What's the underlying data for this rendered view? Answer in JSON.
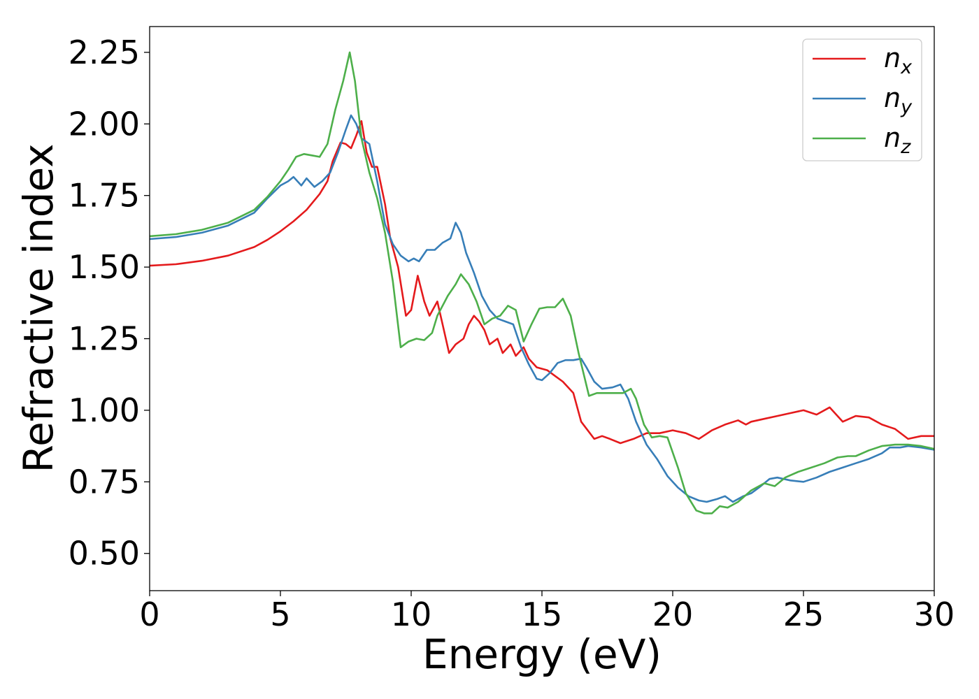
{
  "chart_data": {
    "type": "line",
    "title": "",
    "xlabel": "Energy (eV)",
    "ylabel": "Refractive index",
    "xlim": [
      0,
      30
    ],
    "ylim": [
      0.37,
      2.34
    ],
    "xticks": [
      0,
      5,
      10,
      15,
      20,
      25,
      30
    ],
    "xtick_labels": [
      "0",
      "5",
      "10",
      "15",
      "20",
      "25",
      "30"
    ],
    "yticks": [
      0.5,
      0.75,
      1.0,
      1.25,
      1.5,
      1.75,
      2.0,
      2.25
    ],
    "ytick_labels": [
      "0.50",
      "0.75",
      "1.00",
      "1.25",
      "1.50",
      "1.75",
      "2.00",
      "2.25"
    ],
    "grid": false,
    "legend_position": "top-right",
    "series": [
      {
        "name": "n",
        "subscript": "x",
        "color": "#e41a1c",
        "points": [
          [
            0,
            1.505
          ],
          [
            1,
            1.51
          ],
          [
            2,
            1.522
          ],
          [
            3,
            1.54
          ],
          [
            4,
            1.57
          ],
          [
            4.5,
            1.595
          ],
          [
            5,
            1.625
          ],
          [
            5.5,
            1.66
          ],
          [
            6,
            1.7
          ],
          [
            6.5,
            1.755
          ],
          [
            6.8,
            1.8
          ],
          [
            7.0,
            1.87
          ],
          [
            7.3,
            1.935
          ],
          [
            7.5,
            1.93
          ],
          [
            7.7,
            1.915
          ],
          [
            7.9,
            1.96
          ],
          [
            8.1,
            2.01
          ],
          [
            8.3,
            1.9
          ],
          [
            8.5,
            1.85
          ],
          [
            8.7,
            1.85
          ],
          [
            9.0,
            1.72
          ],
          [
            9.2,
            1.6
          ],
          [
            9.5,
            1.5
          ],
          [
            9.8,
            1.33
          ],
          [
            10.0,
            1.35
          ],
          [
            10.25,
            1.47
          ],
          [
            10.5,
            1.38
          ],
          [
            10.7,
            1.33
          ],
          [
            11.0,
            1.38
          ],
          [
            11.2,
            1.3
          ],
          [
            11.45,
            1.2
          ],
          [
            11.7,
            1.23
          ],
          [
            12.0,
            1.25
          ],
          [
            12.2,
            1.3
          ],
          [
            12.4,
            1.33
          ],
          [
            12.6,
            1.31
          ],
          [
            12.8,
            1.28
          ],
          [
            13.0,
            1.23
          ],
          [
            13.3,
            1.25
          ],
          [
            13.5,
            1.2
          ],
          [
            13.8,
            1.23
          ],
          [
            14.0,
            1.19
          ],
          [
            14.3,
            1.22
          ],
          [
            14.5,
            1.18
          ],
          [
            14.8,
            1.15
          ],
          [
            15.2,
            1.14
          ],
          [
            15.5,
            1.12
          ],
          [
            15.8,
            1.1
          ],
          [
            16.2,
            1.06
          ],
          [
            16.5,
            0.96
          ],
          [
            17.0,
            0.9
          ],
          [
            17.3,
            0.91
          ],
          [
            17.6,
            0.9
          ],
          [
            18.0,
            0.885
          ],
          [
            18.5,
            0.9
          ],
          [
            19.0,
            0.92
          ],
          [
            19.5,
            0.92
          ],
          [
            20.0,
            0.93
          ],
          [
            20.5,
            0.92
          ],
          [
            21.0,
            0.9
          ],
          [
            21.5,
            0.93
          ],
          [
            22.0,
            0.95
          ],
          [
            22.5,
            0.965
          ],
          [
            22.8,
            0.95
          ],
          [
            23.0,
            0.96
          ],
          [
            23.5,
            0.97
          ],
          [
            24.0,
            0.98
          ],
          [
            24.5,
            0.99
          ],
          [
            25.0,
            1.0
          ],
          [
            25.5,
            0.985
          ],
          [
            26.0,
            1.01
          ],
          [
            26.5,
            0.96
          ],
          [
            27.0,
            0.98
          ],
          [
            27.5,
            0.975
          ],
          [
            28.0,
            0.95
          ],
          [
            28.5,
            0.935
          ],
          [
            29.0,
            0.9
          ],
          [
            29.5,
            0.91
          ],
          [
            30.0,
            0.91
          ]
        ]
      },
      {
        "name": "n",
        "subscript": "y",
        "color": "#377eb8",
        "points": [
          [
            0,
            1.598
          ],
          [
            1,
            1.605
          ],
          [
            2,
            1.62
          ],
          [
            3,
            1.645
          ],
          [
            4,
            1.69
          ],
          [
            4.5,
            1.74
          ],
          [
            5,
            1.785
          ],
          [
            5.3,
            1.8
          ],
          [
            5.5,
            1.815
          ],
          [
            5.8,
            1.785
          ],
          [
            6.0,
            1.81
          ],
          [
            6.3,
            1.78
          ],
          [
            6.6,
            1.8
          ],
          [
            6.9,
            1.83
          ],
          [
            7.2,
            1.9
          ],
          [
            7.5,
            1.98
          ],
          [
            7.7,
            2.03
          ],
          [
            7.9,
            2.0
          ],
          [
            8.1,
            1.95
          ],
          [
            8.4,
            1.93
          ],
          [
            8.7,
            1.8
          ],
          [
            9.0,
            1.65
          ],
          [
            9.3,
            1.58
          ],
          [
            9.6,
            1.54
          ],
          [
            9.9,
            1.52
          ],
          [
            10.1,
            1.53
          ],
          [
            10.3,
            1.52
          ],
          [
            10.6,
            1.56
          ],
          [
            10.9,
            1.56
          ],
          [
            11.2,
            1.585
          ],
          [
            11.5,
            1.6
          ],
          [
            11.7,
            1.655
          ],
          [
            11.9,
            1.62
          ],
          [
            12.1,
            1.55
          ],
          [
            12.4,
            1.48
          ],
          [
            12.7,
            1.4
          ],
          [
            13.0,
            1.35
          ],
          [
            13.3,
            1.32
          ],
          [
            13.6,
            1.31
          ],
          [
            13.9,
            1.3
          ],
          [
            14.2,
            1.22
          ],
          [
            14.5,
            1.16
          ],
          [
            14.8,
            1.11
          ],
          [
            15.0,
            1.105
          ],
          [
            15.3,
            1.13
          ],
          [
            15.6,
            1.165
          ],
          [
            15.9,
            1.175
          ],
          [
            16.2,
            1.175
          ],
          [
            16.5,
            1.18
          ],
          [
            16.7,
            1.15
          ],
          [
            17.0,
            1.1
          ],
          [
            17.3,
            1.075
          ],
          [
            17.7,
            1.08
          ],
          [
            18.0,
            1.09
          ],
          [
            18.3,
            1.04
          ],
          [
            18.6,
            0.96
          ],
          [
            19.0,
            0.88
          ],
          [
            19.4,
            0.83
          ],
          [
            19.8,
            0.77
          ],
          [
            20.2,
            0.73
          ],
          [
            20.6,
            0.7
          ],
          [
            21.0,
            0.685
          ],
          [
            21.3,
            0.68
          ],
          [
            21.7,
            0.69
          ],
          [
            22.0,
            0.7
          ],
          [
            22.3,
            0.68
          ],
          [
            22.7,
            0.7
          ],
          [
            23.0,
            0.71
          ],
          [
            23.3,
            0.73
          ],
          [
            23.7,
            0.76
          ],
          [
            24.0,
            0.765
          ],
          [
            24.5,
            0.755
          ],
          [
            25.0,
            0.75
          ],
          [
            25.5,
            0.765
          ],
          [
            26.0,
            0.785
          ],
          [
            26.5,
            0.8
          ],
          [
            27.0,
            0.815
          ],
          [
            27.5,
            0.83
          ],
          [
            28.0,
            0.85
          ],
          [
            28.3,
            0.87
          ],
          [
            28.7,
            0.87
          ],
          [
            29.0,
            0.875
          ],
          [
            29.5,
            0.87
          ],
          [
            30.0,
            0.862
          ]
        ]
      },
      {
        "name": "n",
        "subscript": "z",
        "color": "#4daf4a",
        "points": [
          [
            0,
            1.608
          ],
          [
            1,
            1.615
          ],
          [
            2,
            1.63
          ],
          [
            3,
            1.655
          ],
          [
            4,
            1.7
          ],
          [
            4.5,
            1.745
          ],
          [
            5,
            1.8
          ],
          [
            5.3,
            1.84
          ],
          [
            5.6,
            1.885
          ],
          [
            5.9,
            1.895
          ],
          [
            6.2,
            1.89
          ],
          [
            6.5,
            1.885
          ],
          [
            6.8,
            1.93
          ],
          [
            7.1,
            2.05
          ],
          [
            7.4,
            2.15
          ],
          [
            7.65,
            2.25
          ],
          [
            7.85,
            2.15
          ],
          [
            8.1,
            1.95
          ],
          [
            8.4,
            1.83
          ],
          [
            8.7,
            1.74
          ],
          [
            9.0,
            1.62
          ],
          [
            9.3,
            1.45
          ],
          [
            9.6,
            1.22
          ],
          [
            9.9,
            1.24
          ],
          [
            10.2,
            1.25
          ],
          [
            10.5,
            1.245
          ],
          [
            10.8,
            1.27
          ],
          [
            11.0,
            1.33
          ],
          [
            11.4,
            1.4
          ],
          [
            11.7,
            1.44
          ],
          [
            11.9,
            1.475
          ],
          [
            12.2,
            1.44
          ],
          [
            12.5,
            1.38
          ],
          [
            12.8,
            1.3
          ],
          [
            13.1,
            1.32
          ],
          [
            13.4,
            1.33
          ],
          [
            13.7,
            1.365
          ],
          [
            14.0,
            1.35
          ],
          [
            14.3,
            1.24
          ],
          [
            14.6,
            1.3
          ],
          [
            14.9,
            1.355
          ],
          [
            15.2,
            1.36
          ],
          [
            15.5,
            1.36
          ],
          [
            15.8,
            1.39
          ],
          [
            16.1,
            1.33
          ],
          [
            16.4,
            1.2
          ],
          [
            16.8,
            1.05
          ],
          [
            17.1,
            1.06
          ],
          [
            17.5,
            1.06
          ],
          [
            17.8,
            1.06
          ],
          [
            18.1,
            1.06
          ],
          [
            18.4,
            1.075
          ],
          [
            18.6,
            1.04
          ],
          [
            18.9,
            0.95
          ],
          [
            19.2,
            0.905
          ],
          [
            19.5,
            0.91
          ],
          [
            19.8,
            0.905
          ],
          [
            20.2,
            0.8
          ],
          [
            20.5,
            0.71
          ],
          [
            20.9,
            0.65
          ],
          [
            21.2,
            0.64
          ],
          [
            21.5,
            0.64
          ],
          [
            21.8,
            0.665
          ],
          [
            22.1,
            0.66
          ],
          [
            22.5,
            0.68
          ],
          [
            23.0,
            0.72
          ],
          [
            23.5,
            0.745
          ],
          [
            23.9,
            0.735
          ],
          [
            24.3,
            0.765
          ],
          [
            24.8,
            0.785
          ],
          [
            25.3,
            0.8
          ],
          [
            25.8,
            0.815
          ],
          [
            26.3,
            0.835
          ],
          [
            26.7,
            0.84
          ],
          [
            27.0,
            0.84
          ],
          [
            27.5,
            0.86
          ],
          [
            28.0,
            0.875
          ],
          [
            28.5,
            0.88
          ],
          [
            29.0,
            0.88
          ],
          [
            29.5,
            0.875
          ],
          [
            30.0,
            0.865
          ]
        ]
      }
    ]
  }
}
